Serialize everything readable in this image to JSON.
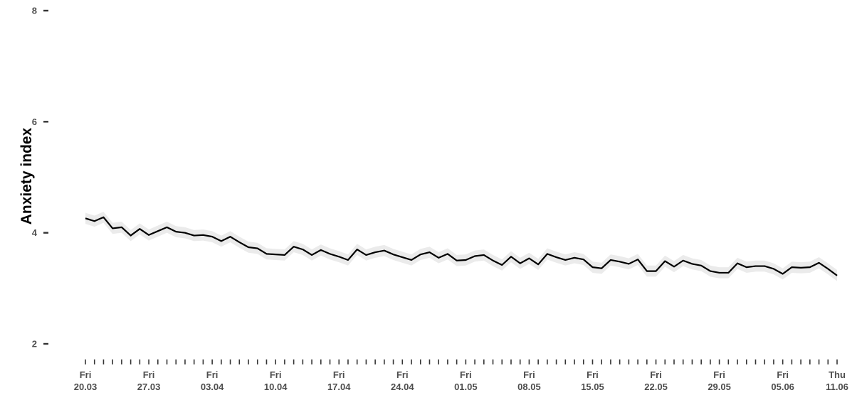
{
  "chart_data": {
    "type": "line",
    "title": "",
    "xlabel": "",
    "ylabel": "Anxiety index",
    "ylim": [
      2,
      8
    ],
    "yticks": [
      2,
      4,
      6,
      8
    ],
    "grid": false,
    "legend": "none",
    "start_date": "2020-03-20",
    "end_date": "2020-06-11",
    "xtick_labels": [
      {
        "date": "2020-03-20",
        "day": "Fri",
        "label": "20.03"
      },
      {
        "date": "2020-03-27",
        "day": "Fri",
        "label": "27.03"
      },
      {
        "date": "2020-04-03",
        "day": "Fri",
        "label": "03.04"
      },
      {
        "date": "2020-04-10",
        "day": "Fri",
        "label": "10.04"
      },
      {
        "date": "2020-04-17",
        "day": "Fri",
        "label": "17.04"
      },
      {
        "date": "2020-04-24",
        "day": "Fri",
        "label": "24.04"
      },
      {
        "date": "2020-05-01",
        "day": "Fri",
        "label": "01.05"
      },
      {
        "date": "2020-05-08",
        "day": "Fri",
        "label": "08.05"
      },
      {
        "date": "2020-05-15",
        "day": "Fri",
        "label": "15.05"
      },
      {
        "date": "2020-05-22",
        "day": "Fri",
        "label": "22.05"
      },
      {
        "date": "2020-05-29",
        "day": "Fri",
        "label": "29.05"
      },
      {
        "date": "2020-06-05",
        "day": "Fri",
        "label": "05.06"
      },
      {
        "date": "2020-06-11",
        "day": "Thu",
        "label": "11.06"
      }
    ],
    "series": [
      {
        "line_color": "#000000",
        "ribbon_color": "#ebebeb",
        "values": [
          4.26,
          4.21,
          4.28,
          4.08,
          4.1,
          3.95,
          4.07,
          3.96,
          4.03,
          4.1,
          4.02,
          4.0,
          3.95,
          3.96,
          3.93,
          3.85,
          3.93,
          3.83,
          3.74,
          3.72,
          3.62,
          3.61,
          3.6,
          3.75,
          3.7,
          3.6,
          3.69,
          3.62,
          3.57,
          3.51,
          3.7,
          3.6,
          3.65,
          3.68,
          3.61,
          3.56,
          3.51,
          3.61,
          3.65,
          3.55,
          3.62,
          3.5,
          3.51,
          3.58,
          3.6,
          3.5,
          3.42,
          3.57,
          3.45,
          3.54,
          3.43,
          3.62,
          3.56,
          3.51,
          3.55,
          3.52,
          3.38,
          3.36,
          3.51,
          3.48,
          3.44,
          3.52,
          3.31,
          3.31,
          3.49,
          3.39,
          3.5,
          3.44,
          3.41,
          3.31,
          3.28,
          3.28,
          3.45,
          3.38,
          3.4,
          3.4,
          3.35,
          3.26,
          3.38,
          3.37,
          3.38,
          3.46,
          3.35,
          3.23
        ],
        "ci_halfwidth": 0.1
      }
    ]
  }
}
